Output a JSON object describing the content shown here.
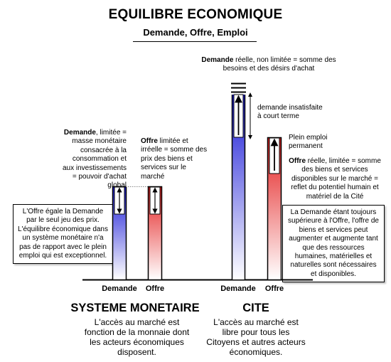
{
  "title": "EQUILIBRE ECONOMIQUE",
  "subtitle": "Demande, Offre, Emploi",
  "colors": {
    "demand_top": "#1a1ad6",
    "demand_bottom": "#ffffff",
    "offer_top": "#e31c1c",
    "offer_bottom": "#ffffff"
  },
  "left": {
    "demand_note": {
      "bold": "Demande",
      "rest": ", limitée = masse monétaire consacrée à la consommation et aux investissements = pouvoir d'achat global"
    },
    "offer_note": {
      "bold": "Offre",
      "rest": " limitée et irréelle = somme des prix des biens et services sur le marché"
    },
    "box": "L'Offre égale la Demande par le seul jeu des prix. L'équilibre économique dans un système monétaire n'a pas de rapport avec le plein emploi qui est exceptionnel.",
    "bar_labels": [
      "Demande",
      "Offre"
    ],
    "heading": "SYSTEME MONETAIRE",
    "text": "L'accès au marché est fonction de la monnaie dont les acteurs économiques disposent."
  },
  "right": {
    "demand_note": {
      "bold": "Demande",
      "rest": " réelle, non limitée = somme des besoins et des désirs d'achat"
    },
    "unmet_note": "demande insatisfaite à court terme",
    "full_employment": "Plein emploi permanent",
    "offer_note": {
      "bold": "Offre",
      "rest": " réelle, limitée = somme des biens et services disponibles sur le marché = reflet du potentiel humain et matériel de la Cité"
    },
    "box": "La Demande étant toujours supérieure à l'Offre, l'offre de biens et services peut augmenter et augmente tant que des ressources humaines, matérielles et naturelles sont nécessaires et disponibles.",
    "bar_labels": [
      "Demande",
      "Offre"
    ],
    "heading": "CITE",
    "text": "L'accès au marché est libre pour tous les Citoyens et autres acteurs économiques."
  }
}
